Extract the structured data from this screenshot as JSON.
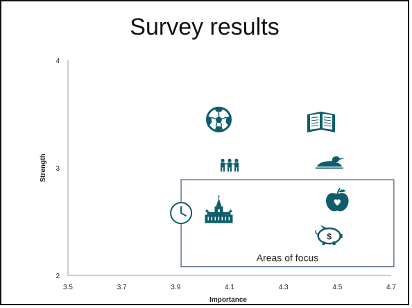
{
  "slide": {
    "title": "Survey results"
  },
  "chart_data": {
    "type": "scatter",
    "title": "",
    "xlabel": "Importance",
    "ylabel": "Strength",
    "xlim": [
      3.5,
      4.7
    ],
    "ylim": [
      2,
      4
    ],
    "xticks": [
      3.5,
      3.7,
      3.9,
      4.1,
      4.3,
      4.5,
      4.7
    ],
    "xtick_labels": [
      "3.5",
      "3.7",
      "3.9",
      "4.1",
      "4.3",
      "4.5",
      "4.7"
    ],
    "yticks": [
      2,
      3,
      4
    ],
    "ytick_labels": [
      "2",
      "3",
      "4"
    ],
    "grid": false,
    "points": [
      {
        "icon": "clock-icon",
        "x": 3.92,
        "y": 2.58
      },
      {
        "icon": "soccer-ball-icon",
        "x": 4.06,
        "y": 3.45
      },
      {
        "icon": "children-icon",
        "x": 4.1,
        "y": 3.03
      },
      {
        "icon": "parliament-icon",
        "x": 4.06,
        "y": 2.59
      },
      {
        "icon": "book-icon",
        "x": 4.44,
        "y": 3.42
      },
      {
        "icon": "loon-icon",
        "x": 4.47,
        "y": 3.05
      },
      {
        "icon": "apple-icon",
        "x": 4.5,
        "y": 2.7
      },
      {
        "icon": "piggy-bank-icon",
        "x": 4.47,
        "y": 2.38
      }
    ],
    "focus_region": {
      "label": "Areas of focus",
      "x": [
        3.92,
        4.71
      ],
      "y": [
        2.08,
        2.89
      ]
    },
    "icon_color": "#0f5d6b",
    "focus_border_color": "#3a5a7a",
    "axis_color": "#999999"
  }
}
